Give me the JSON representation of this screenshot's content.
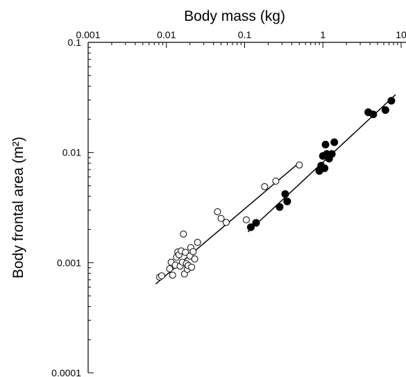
{
  "chart_data": {
    "type": "scatter",
    "xlabel": "Body mass (kg)",
    "ylabel": "Body frontal area (m²)",
    "x_scale": "log",
    "y_scale": "log",
    "xlim": [
      0.001,
      10
    ],
    "ylim": [
      0.0001,
      0.1
    ],
    "x_ticks": [
      {
        "value": 0.001,
        "label": "0.001"
      },
      {
        "value": 0.01,
        "label": "0.01"
      },
      {
        "value": 0.1,
        "label": "0.1"
      },
      {
        "value": 1,
        "label": "1"
      },
      {
        "value": 10,
        "label": "10"
      }
    ],
    "y_ticks": [
      {
        "value": 0.1,
        "label": "0.1"
      },
      {
        "value": 0.01,
        "label": "0.01"
      },
      {
        "value": 0.001,
        "label": "0.001"
      },
      {
        "value": 0.0001,
        "label": "0.0001"
      }
    ],
    "grid": false,
    "legend": "none",
    "series": [
      {
        "marker": "open-circle",
        "points": [
          [
            0.0082,
            0.00074
          ],
          [
            0.0087,
            0.00076
          ],
          [
            0.011,
            0.00088
          ],
          [
            0.0115,
            0.00101
          ],
          [
            0.012,
            0.00077
          ],
          [
            0.013,
            0.00095
          ],
          [
            0.0135,
            0.00112
          ],
          [
            0.014,
            0.00125
          ],
          [
            0.0145,
            0.00118
          ],
          [
            0.015,
            0.00093
          ],
          [
            0.0155,
            0.00128
          ],
          [
            0.016,
            0.00101
          ],
          [
            0.0165,
            0.00182
          ],
          [
            0.017,
            0.00079
          ],
          [
            0.0175,
            0.00124
          ],
          [
            0.018,
            0.00098
          ],
          [
            0.0185,
            0.00087
          ],
          [
            0.019,
            0.00094
          ],
          [
            0.02,
            0.00115
          ],
          [
            0.0205,
            0.00137
          ],
          [
            0.021,
            0.00091
          ],
          [
            0.022,
            0.00126
          ],
          [
            0.023,
            0.00108
          ],
          [
            0.025,
            0.00153
          ],
          [
            0.045,
            0.0029
          ],
          [
            0.05,
            0.00252
          ],
          [
            0.058,
            0.00232
          ],
          [
            0.105,
            0.00245
          ],
          [
            0.18,
            0.0049
          ],
          [
            0.25,
            0.0055
          ],
          [
            0.5,
            0.0077
          ]
        ],
        "fit": [
          [
            0.0073,
            0.00064
          ],
          [
            0.5,
            0.0081
          ]
        ]
      },
      {
        "marker": "filled-circle",
        "points": [
          [
            0.12,
            0.0021
          ],
          [
            0.14,
            0.0023
          ],
          [
            0.28,
            0.0032
          ],
          [
            0.33,
            0.0042
          ],
          [
            0.35,
            0.0036
          ],
          [
            0.9,
            0.0068
          ],
          [
            0.95,
            0.0076
          ],
          [
            1.0,
            0.0093
          ],
          [
            1.05,
            0.0072
          ],
          [
            1.08,
            0.0118
          ],
          [
            1.12,
            0.0097
          ],
          [
            1.2,
            0.0088
          ],
          [
            1.3,
            0.0097
          ],
          [
            1.4,
            0.0124
          ],
          [
            3.8,
            0.0232
          ],
          [
            4.4,
            0.0222
          ],
          [
            6.3,
            0.0243
          ],
          [
            7.5,
            0.0295
          ]
        ],
        "fit": [
          [
            0.11,
            0.0019
          ],
          [
            8.5,
            0.0335
          ]
        ]
      }
    ]
  }
}
